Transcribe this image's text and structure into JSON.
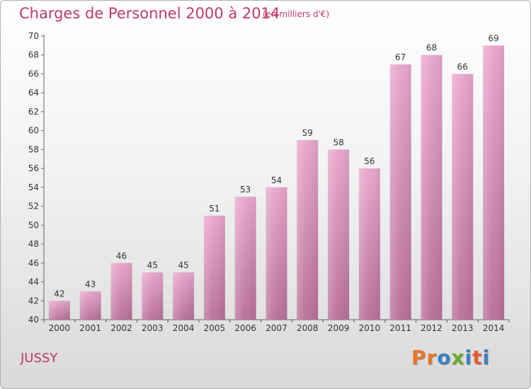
{
  "page": {
    "title": "Charges de Personnel 2000 à 2014",
    "subtitle": "(en milliers d'€)",
    "place": "JUSSY",
    "logo": "Proxiti"
  },
  "colors": {
    "accent": "#c0396b",
    "bar_top": "#e8a6cb",
    "bar_bottom": "#b86f99",
    "logo_letters": [
      "#e8742a",
      "#e8742a",
      "#3a7fc1",
      "#6aaa2e",
      "#3a7fc1",
      "#e85a2a",
      "#3a7fc1"
    ]
  },
  "chart_data": {
    "type": "bar",
    "categories": [
      "2000",
      "2001",
      "2002",
      "2003",
      "2004",
      "2005",
      "2006",
      "2007",
      "2008",
      "2009",
      "2010",
      "2011",
      "2012",
      "2013",
      "2014"
    ],
    "values": [
      42,
      43,
      46,
      45,
      45,
      51,
      53,
      54,
      59,
      58,
      56,
      67,
      68,
      66,
      69
    ],
    "ylim": [
      40,
      70
    ],
    "yticks": [
      40,
      42,
      44,
      46,
      48,
      50,
      52,
      54,
      56,
      58,
      60,
      62,
      64,
      66,
      68,
      70
    ],
    "grid": false,
    "data_labels": true
  }
}
